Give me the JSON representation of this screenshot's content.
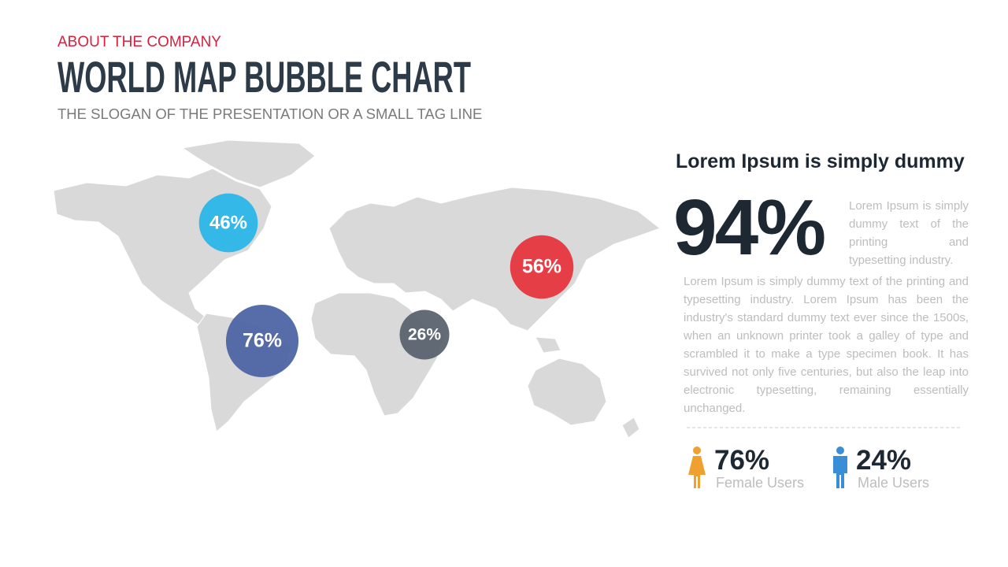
{
  "header": {
    "kicker": "ABOUT THE COMPANY",
    "title": "WORLD MAP BUBBLE CHART",
    "tagline": "THE SLOGAN OF THE PRESENTATION OR A SMALL TAG LINE"
  },
  "bubbles": [
    {
      "value": 46,
      "label": "46%",
      "color": "#27b5e8"
    },
    {
      "value": 76,
      "label": "76%",
      "color": "#4a62a4"
    },
    {
      "value": 26,
      "label": "26%",
      "color": "#56606c"
    },
    {
      "value": 56,
      "label": "56%",
      "color": "#e5323b"
    }
  ],
  "panel": {
    "heading": "Lorem Ipsum is simply dummy",
    "big_stat": "94%",
    "side_text": "Lorem Ipsum is simply dummy text of the printing and typesetting industry.",
    "body": "Lorem Ipsum is simply dummy text of the printing and typesetting industry. Lorem Ipsum has been the industry's standard dummy text ever since the 1500s, when an unknown printer took a galley of type and scrambled it to make a type specimen book. It has survived not only five centuries, but also the leap into electronic typesetting, remaining essentially unchanged.",
    "users": [
      {
        "value": "76%",
        "label": "Female Users",
        "color": "#f0a02e"
      },
      {
        "value": "24%",
        "label": "Male Users",
        "color": "#3a8ed6"
      }
    ]
  }
}
